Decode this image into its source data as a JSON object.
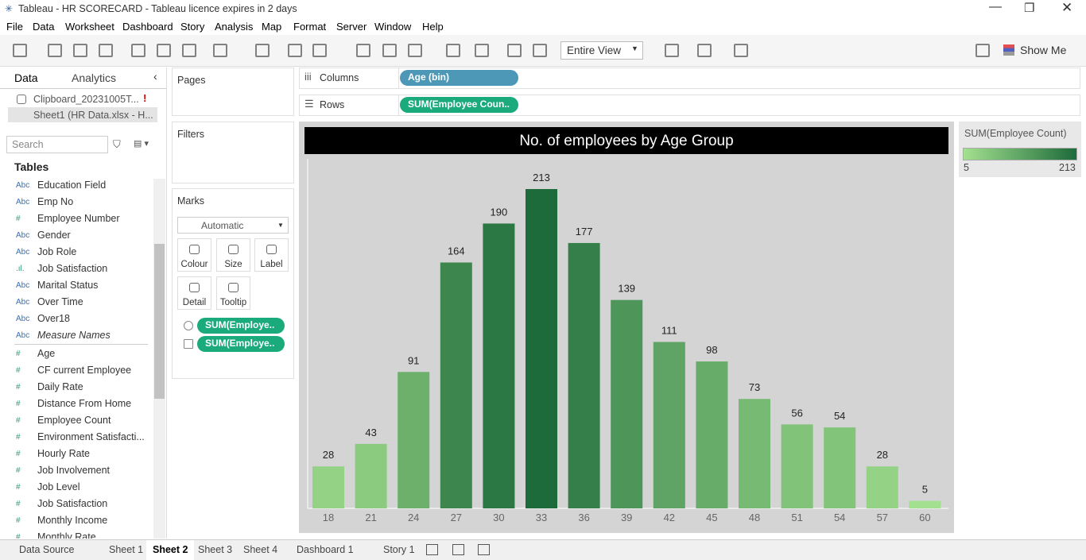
{
  "window": {
    "title": "Tableau - HR SCORECARD - Tableau licence expires in 2 days"
  },
  "menu": [
    "File",
    "Data",
    "Worksheet",
    "Dashboard",
    "Story",
    "Analysis",
    "Map",
    "Format",
    "Server",
    "Window",
    "Help"
  ],
  "toolbar": {
    "view": "Entire View",
    "show_me": "Show Me"
  },
  "data_pane": {
    "tabs": [
      "Data",
      "Analytics"
    ],
    "sources": [
      "Clipboard_20231005T...",
      "Sheet1 (HR Data.xlsx - H..."
    ],
    "search": "Search",
    "tables_heading": "Tables",
    "dimensions": [
      {
        "icon": "Abc",
        "name": "Education Field"
      },
      {
        "icon": "Abc",
        "name": "Emp No"
      },
      {
        "icon": "#",
        "name": "Employee Number"
      },
      {
        "icon": "Abc",
        "name": "Gender"
      },
      {
        "icon": "Abc",
        "name": "Job Role"
      },
      {
        "icon": ".ıl.",
        "name": "Job Satisfaction"
      },
      {
        "icon": "Abc",
        "name": "Marital Status"
      },
      {
        "icon": "Abc",
        "name": "Over Time"
      },
      {
        "icon": "Abc",
        "name": "Over18"
      },
      {
        "icon": "Abc",
        "name": "Measure Names"
      }
    ],
    "measures": [
      {
        "icon": "#",
        "name": "Age"
      },
      {
        "icon": "#",
        "name": "CF current Employee"
      },
      {
        "icon": "#",
        "name": "Daily Rate"
      },
      {
        "icon": "#",
        "name": "Distance From Home"
      },
      {
        "icon": "#",
        "name": "Employee Count"
      },
      {
        "icon": "#",
        "name": "Environment Satisfacti..."
      },
      {
        "icon": "#",
        "name": "Hourly Rate"
      },
      {
        "icon": "#",
        "name": "Job Involvement"
      },
      {
        "icon": "#",
        "name": "Job Level"
      },
      {
        "icon": "#",
        "name": "Job Satisfaction"
      },
      {
        "icon": "#",
        "name": "Monthly Income"
      },
      {
        "icon": "#",
        "name": "Monthly Rate"
      }
    ]
  },
  "cards": {
    "pages": "Pages",
    "filters": "Filters",
    "marks": {
      "title": "Marks",
      "mark_type": "Automatic",
      "buttons": [
        "Colour",
        "Size",
        "Label",
        "Detail",
        "Tooltip"
      ],
      "pills": [
        "SUM(Employe..",
        "SUM(Employe.."
      ]
    }
  },
  "shelves": {
    "columns": {
      "label": "Columns",
      "pill": "Age (bin)"
    },
    "rows": {
      "label": "Rows",
      "pill": "SUM(Employee Coun.."
    }
  },
  "chart_data": {
    "type": "bar",
    "title": "No. of employees by Age Group",
    "categories": [
      18,
      21,
      24,
      27,
      30,
      33,
      36,
      39,
      42,
      45,
      48,
      51,
      54,
      57,
      60
    ],
    "values": [
      28,
      43,
      91,
      164,
      190,
      213,
      177,
      139,
      111,
      98,
      73,
      56,
      54,
      28,
      5
    ],
    "legend": {
      "title": "SUM(Employee Count)",
      "min": 5,
      "max": 213,
      "colors": [
        "#a3e08f",
        "#1d6b3b"
      ]
    }
  },
  "sheet_tabs": [
    "Data Source",
    "Sheet 1",
    "Sheet 2",
    "Sheet 3",
    "Sheet 4",
    "Dashboard 1",
    "Story 1"
  ],
  "active_tab": 2
}
